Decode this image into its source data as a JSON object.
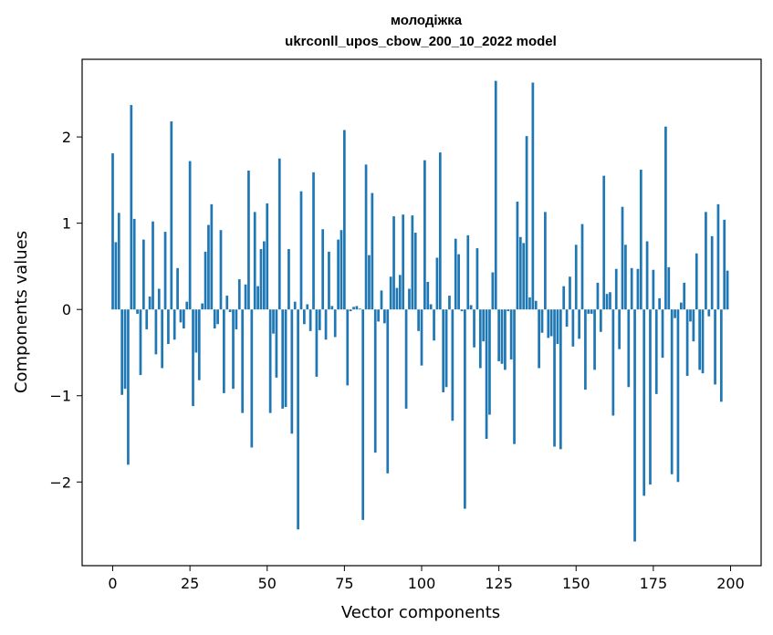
{
  "chart_data": {
    "type": "bar",
    "title": "молодіжка",
    "subtitle": "ukrconll_upos_cbow_200_10_2022 model",
    "xlabel": "Vector components",
    "ylabel": "Components values",
    "xlim": [
      -9.9,
      209.9
    ],
    "ylim": [
      -2.97,
      2.9
    ],
    "xticks": [
      0,
      25,
      50,
      75,
      100,
      125,
      150,
      175,
      200
    ],
    "yticks": [
      -2,
      -1,
      0,
      1,
      2
    ],
    "ytick_labels": [
      "−2",
      "−1",
      "0",
      "1",
      "2"
    ],
    "bar_color": "#1f77b4",
    "grid": false,
    "values": [
      1.81,
      0.78,
      1.12,
      -0.99,
      -0.92,
      -1.8,
      2.37,
      1.05,
      -0.05,
      -0.76,
      0.81,
      -0.23,
      0.15,
      1.02,
      -0.52,
      0.24,
      -0.68,
      0.9,
      -0.4,
      2.18,
      -0.35,
      0.48,
      -0.15,
      -0.22,
      0.09,
      1.72,
      -1.12,
      -0.5,
      -0.82,
      0.07,
      0.67,
      0.98,
      1.22,
      -0.22,
      -0.17,
      0.92,
      -0.97,
      0.16,
      -0.03,
      -0.92,
      -0.23,
      0.35,
      -1.2,
      0.29,
      1.61,
      -1.6,
      1.13,
      0.27,
      0.7,
      0.79,
      1.23,
      -1.2,
      -0.28,
      -0.79,
      1.75,
      -1.15,
      -1.13,
      0.7,
      -1.44,
      0.09,
      -2.55,
      1.37,
      -0.17,
      0.06,
      -0.25,
      1.59,
      -0.78,
      -0.24,
      0.93,
      -0.35,
      0.67,
      0.04,
      -0.32,
      0.81,
      0.92,
      2.08,
      -0.88,
      -0.02,
      0.03,
      0.04,
      0.01,
      -2.44,
      1.68,
      0.63,
      1.35,
      -1.66,
      -0.14,
      0.22,
      -0.16,
      -1.9,
      0.38,
      1.08,
      0.25,
      0.4,
      1.1,
      -1.15,
      0.24,
      1.09,
      0.89,
      -0.25,
      -0.65,
      1.73,
      0.32,
      0.06,
      -0.36,
      0.6,
      1.82,
      -0.96,
      -0.9,
      0.16,
      -1.29,
      0.82,
      0.64,
      -0.02,
      -2.31,
      0.86,
      0.05,
      -0.44,
      0.71,
      -0.68,
      -0.37,
      -1.5,
      -1.22,
      0.43,
      2.65,
      -0.6,
      -0.63,
      -0.7,
      -0.02,
      -0.58,
      -1.56,
      1.25,
      0.84,
      0.77,
      2.01,
      0.14,
      2.63,
      0.1,
      -0.68,
      -0.27,
      1.13,
      -0.33,
      -0.31,
      -1.59,
      -0.4,
      -1.62,
      0.27,
      -0.2,
      0.38,
      -0.43,
      0.75,
      -0.34,
      0.99,
      -0.93,
      -0.05,
      -0.05,
      -0.7,
      0.31,
      -0.26,
      1.55,
      0.18,
      0.2,
      -1.23,
      0.47,
      -0.46,
      1.19,
      0.75,
      -0.9,
      0.48,
      -2.69,
      0.47,
      1.62,
      -2.16,
      0.79,
      -2.03,
      0.46,
      -0.98,
      0.13,
      -0.56,
      2.12,
      0.49,
      -1.91,
      -0.1,
      -2.0,
      0.08,
      0.31,
      -0.77,
      -0.14,
      -0.37,
      0.65,
      -0.7,
      -0.74,
      1.13,
      -0.08,
      0.85,
      -0.87,
      1.22,
      -1.07,
      1.04,
      0.45
    ]
  }
}
